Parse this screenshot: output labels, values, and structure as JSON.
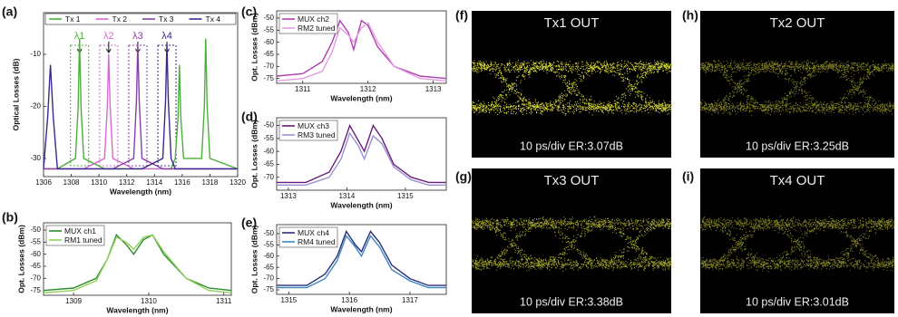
{
  "chart_data": [
    {
      "type": "line",
      "panel_label": "(a)",
      "x_label": "Wavelength (nm)",
      "y_label": "Optical Losses (dB)",
      "legend": "top",
      "annotations": [
        "λ1",
        "λ2",
        "λ3",
        "λ4"
      ],
      "xlim": [
        1306,
        1320
      ],
      "xticks": [
        1306,
        1308,
        1310,
        1312,
        1314,
        1316,
        1318,
        1320
      ],
      "ylim": [
        -33.5,
        -2
      ],
      "yticks": [
        -30,
        -20,
        -10
      ],
      "x": [
        1306,
        1306.3,
        1306.5,
        1306.7,
        1307,
        1308.3,
        1308.5,
        1308.6,
        1308.7,
        1308.9,
        1310.4,
        1310.6,
        1310.7,
        1310.8,
        1311,
        1312.5,
        1312.7,
        1312.8,
        1312.9,
        1313.1,
        1314.6,
        1314.8,
        1314.9,
        1315,
        1315.2,
        1315.5,
        1315.7,
        1315.8,
        1315.9,
        1316.1,
        1317.4,
        1317.6,
        1317.7,
        1317.8,
        1318,
        1320
      ],
      "series": [
        {
          "name": "Tx 1",
          "color": "#4caf3c",
          "values": [
            -32,
            -32,
            -32,
            -32,
            -32,
            -30,
            -20,
            -7,
            -20,
            -30,
            -32,
            -32,
            -32,
            -32,
            -32,
            -32,
            -32,
            -32,
            -32,
            -32,
            -32,
            -32,
            -32,
            -32,
            -32,
            -30,
            -22,
            -12,
            -22,
            -30,
            -30,
            -20,
            -7,
            -20,
            -30,
            -32
          ]
        },
        {
          "name": "Tx 2",
          "color": "#d26ad2",
          "values": [
            -32,
            -32,
            -32,
            -32,
            -32,
            -32,
            -32,
            -32,
            -32,
            -32,
            -30,
            -20,
            -10,
            -20,
            -30,
            -32,
            -32,
            -32,
            -32,
            -32,
            -32,
            -32,
            -32,
            -32,
            -32,
            -32,
            -32,
            -32,
            -32,
            -32,
            -32,
            -32,
            -32,
            -32,
            -32,
            -32
          ]
        },
        {
          "name": "Tx 3",
          "color": "#8a3fa6",
          "values": [
            -32,
            -32,
            -32,
            -32,
            -32,
            -32,
            -32,
            -32,
            -32,
            -32,
            -32,
            -32,
            -32,
            -32,
            -32,
            -30,
            -19,
            -8,
            -19,
            -30,
            -32,
            -32,
            -32,
            -32,
            -32,
            -32,
            -32,
            -32,
            -32,
            -32,
            -32,
            -32,
            -32,
            -32,
            -32,
            -32
          ]
        },
        {
          "name": "Tx 4",
          "color": "#3b2a8c",
          "values": [
            -32,
            -22,
            -12,
            -22,
            -32,
            -32,
            -32,
            -32,
            -32,
            -32,
            -32,
            -32,
            -32,
            -32,
            -32,
            -32,
            -32,
            -32,
            -32,
            -32,
            -30,
            -19,
            -8,
            -19,
            -30,
            -32,
            -32,
            -32,
            -32,
            -32,
            -32,
            -32,
            -32,
            -32,
            -32,
            -32
          ]
        }
      ]
    },
    {
      "type": "line",
      "panel_label": "(b)",
      "x_label": "Wavelength (nm)",
      "y_label": "Opt. Losses (dBm)",
      "legend": "upper left",
      "xlim": [
        1308.6,
        1311.1
      ],
      "xticks": [
        1309,
        1310,
        1311
      ],
      "ylim": [
        -77,
        -47
      ],
      "yticks": [
        -50,
        -55,
        -60,
        -65,
        -70,
        -75
      ],
      "x": [
        1308.6,
        1309.0,
        1309.3,
        1309.45,
        1309.57,
        1309.7,
        1309.8,
        1309.93,
        1310.05,
        1310.2,
        1310.5,
        1310.8,
        1311.1
      ],
      "series": [
        {
          "name": "MUX ch1",
          "color": "#2e8b2e",
          "values": [
            -75,
            -74,
            -70,
            -62,
            -52,
            -56,
            -60,
            -54,
            -52,
            -60,
            -70,
            -74,
            -75
          ]
        },
        {
          "name": "RM1 tuned",
          "color": "#8fd05a",
          "values": [
            -76,
            -75,
            -71,
            -62,
            -53,
            -55,
            -58,
            -53,
            -52,
            -59,
            -70,
            -75,
            -76
          ]
        }
      ]
    },
    {
      "type": "line",
      "panel_label": "(c)",
      "x_label": "Wavelength (nm)",
      "y_label": "Opt. Losses (dBm)",
      "legend": "upper left",
      "xlim": [
        1310.6,
        1313.2
      ],
      "xticks": [
        1311,
        1312,
        1313
      ],
      "ylim": [
        -77,
        -47
      ],
      "yticks": [
        -50,
        -55,
        -60,
        -65,
        -70,
        -75
      ],
      "x": [
        1310.6,
        1311.0,
        1311.3,
        1311.45,
        1311.57,
        1311.7,
        1311.78,
        1311.9,
        1312.0,
        1312.15,
        1312.4,
        1312.8,
        1313.2
      ],
      "series": [
        {
          "name": "MUX ch2",
          "color": "#b03fb0",
          "values": [
            -74,
            -73,
            -68,
            -60,
            -51,
            -56,
            -63,
            -51,
            -53,
            -62,
            -70,
            -74,
            -75
          ]
        },
        {
          "name": "RM2 tuned",
          "color": "#e39be3",
          "values": [
            -76,
            -75,
            -72,
            -64,
            -54,
            -57,
            -60,
            -54,
            -52,
            -60,
            -70,
            -75,
            -76
          ]
        }
      ]
    },
    {
      "type": "line",
      "panel_label": "(d)",
      "x_label": "Wavelength (nm)",
      "y_label": "Opt. Losses (dBm)",
      "legend": "upper left",
      "xlim": [
        1312.8,
        1315.7
      ],
      "xticks": [
        1313,
        1314,
        1315
      ],
      "ylim": [
        -75,
        -47
      ],
      "yticks": [
        -50,
        -55,
        -60,
        -65,
        -70
      ],
      "x": [
        1312.8,
        1313.3,
        1313.7,
        1313.9,
        1314.05,
        1314.2,
        1314.3,
        1314.45,
        1314.6,
        1314.8,
        1315.1,
        1315.4,
        1315.7
      ],
      "series": [
        {
          "name": "MUX ch3",
          "color": "#6a1f7a",
          "values": [
            -72,
            -72,
            -68,
            -60,
            -50,
            -56,
            -60,
            -50,
            -55,
            -65,
            -70,
            -72,
            -72
          ]
        },
        {
          "name": "RM3 tuned",
          "color": "#9c8fd6",
          "values": [
            -73,
            -73,
            -70,
            -63,
            -53,
            -58,
            -63,
            -54,
            -57,
            -66,
            -71,
            -73,
            -73
          ]
        }
      ]
    },
    {
      "type": "line",
      "panel_label": "(e)",
      "x_label": "Wavelength (nm)",
      "y_label": "Opt. Losses (dBm)",
      "legend": "upper left",
      "xlim": [
        1314.8,
        1317.6
      ],
      "xticks": [
        1315,
        1316,
        1317
      ],
      "ylim": [
        -77,
        -46
      ],
      "yticks": [
        -50,
        -55,
        -60,
        -65,
        -70,
        -75
      ],
      "x": [
        1314.8,
        1315.3,
        1315.6,
        1315.8,
        1315.95,
        1316.1,
        1316.2,
        1316.35,
        1316.5,
        1316.7,
        1317.0,
        1317.3,
        1317.6
      ],
      "series": [
        {
          "name": "MUX ch4",
          "color": "#2a2f7a",
          "values": [
            -73,
            -73,
            -68,
            -60,
            -49,
            -55,
            -58,
            -49,
            -54,
            -64,
            -70,
            -73,
            -73
          ]
        },
        {
          "name": "RM4 tuned",
          "color": "#3f86c4",
          "values": [
            -74,
            -74,
            -70,
            -62,
            -51,
            -56,
            -60,
            -51,
            -56,
            -66,
            -71,
            -74,
            -74
          ]
        }
      ]
    }
  ],
  "eye_diagrams": [
    {
      "panel_label": "(f)",
      "title": "Tx1 OUT",
      "caption": "10 ps/div ER:3.07dB"
    },
    {
      "panel_label": "(h)",
      "title": "Tx2 OUT",
      "caption": "10 ps/div ER:3.25dB"
    },
    {
      "panel_label": "(g)",
      "title": "Tx3 OUT",
      "caption": "10 ps/div ER:3.38dB"
    },
    {
      "panel_label": "(i)",
      "title": "Tx4 OUT",
      "caption": "10 ps/div ER:3.01dB"
    }
  ]
}
